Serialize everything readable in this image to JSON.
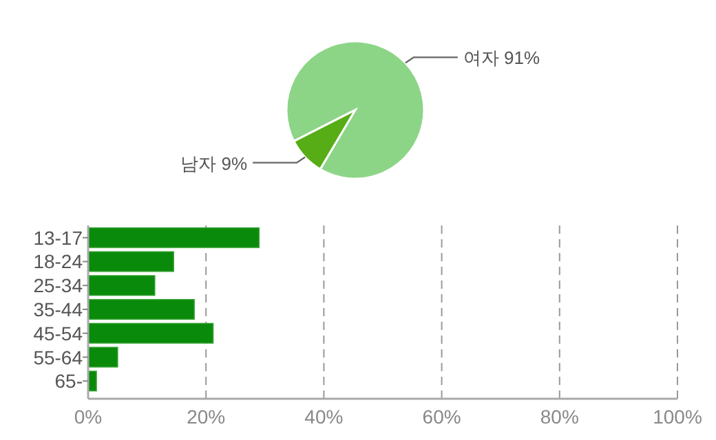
{
  "chart_data": [
    {
      "type": "pie",
      "categories": [
        "여자 91%",
        "남자 9%"
      ],
      "values": [
        91,
        9
      ],
      "colors": [
        "#8cd587",
        "#57ad15"
      ]
    },
    {
      "type": "bar",
      "orientation": "horizontal",
      "categories": [
        "13-17",
        "18-24",
        "25-34",
        "35-44",
        "45-54",
        "55-64",
        "65-"
      ],
      "values": [
        29,
        14.5,
        11.3,
        18,
        21.2,
        5,
        1.4
      ],
      "color": "#0a8a0a",
      "xlim": [
        0,
        100
      ],
      "xticks": [
        {
          "value": 0,
          "label": "0%"
        },
        {
          "value": 20,
          "label": "20%"
        },
        {
          "value": 40,
          "label": "40%"
        },
        {
          "value": 60,
          "label": "60%"
        },
        {
          "value": 80,
          "label": "80%"
        },
        {
          "value": 100,
          "label": "100%"
        }
      ],
      "grid": "x"
    }
  ]
}
